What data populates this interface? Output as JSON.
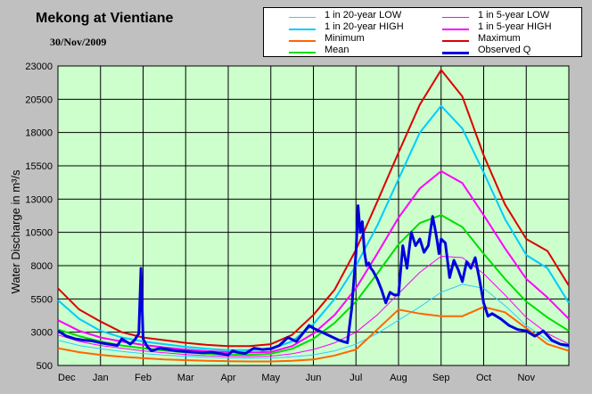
{
  "chart_data": {
    "type": "line",
    "title": "Mekong at Vientiane",
    "subtitle": "30/Nov/2009",
    "ylabel": "Water Discharge in m³/s",
    "xlabel": "",
    "ylim": [
      500,
      23000
    ],
    "yticks": [
      500,
      3000,
      5500,
      8000,
      10500,
      13000,
      15500,
      18000,
      20500,
      23000
    ],
    "xticks": [
      "Dec",
      "Jan",
      "Feb",
      "Mar",
      "Apr",
      "May",
      "Jun",
      "Jul",
      "Aug",
      "Sep",
      "Oct",
      "Nov"
    ],
    "x_domain": [
      0,
      12
    ],
    "plot_background": "#ccffcc",
    "page_background": "#c0c0c0",
    "grid": true,
    "legend_placement": "top-right",
    "series": [
      {
        "name": "1 in 20-year LOW",
        "color": "#33ccff",
        "width": 1,
        "x": [
          0,
          0.5,
          1,
          1.5,
          2,
          2.5,
          3,
          3.5,
          4,
          4.5,
          5,
          5.5,
          6,
          6.5,
          7,
          7.5,
          8,
          8.5,
          9,
          9.5,
          10,
          10.5,
          11,
          11.5,
          12
        ],
        "y": [
          2400,
          2000,
          1750,
          1550,
          1400,
          1280,
          1180,
          1100,
          1060,
          1040,
          1050,
          1150,
          1300,
          1600,
          2100,
          2900,
          3900,
          4900,
          6000,
          6600,
          6300,
          5000,
          3500,
          2400,
          1800
        ]
      },
      {
        "name": "1 in 5-year LOW",
        "color": "#ff00ff",
        "width": 1,
        "x": [
          0,
          0.5,
          1,
          1.5,
          2,
          2.5,
          3,
          3.5,
          4,
          4.5,
          5,
          5.5,
          6,
          6.5,
          7,
          7.5,
          8,
          8.5,
          9,
          9.5,
          10,
          10.5,
          11,
          11.5,
          12
        ],
        "y": [
          2800,
          2300,
          2000,
          1800,
          1600,
          1450,
          1320,
          1230,
          1180,
          1160,
          1200,
          1380,
          1700,
          2200,
          3000,
          4300,
          5900,
          7500,
          8700,
          8600,
          7400,
          5800,
          4100,
          2900,
          2100
        ]
      },
      {
        "name": "1 in 20-year HIGH",
        "color": "#00ccff",
        "width": 2,
        "x": [
          0,
          0.5,
          1,
          1.5,
          2,
          2.5,
          3,
          3.5,
          4,
          4.5,
          5,
          5.5,
          6,
          6.5,
          7,
          7.5,
          8,
          8.5,
          9,
          9.5,
          10,
          10.5,
          11,
          11.5,
          12
        ],
        "y": [
          5400,
          4000,
          3100,
          2600,
          2300,
          2100,
          1900,
          1750,
          1650,
          1650,
          1750,
          2300,
          3600,
          5500,
          8000,
          11000,
          14500,
          18000,
          20000,
          18300,
          15000,
          11500,
          8800,
          7800,
          5200
        ]
      },
      {
        "name": "1 in 5-year HIGH",
        "color": "#ff00ff",
        "width": 2,
        "x": [
          0,
          0.5,
          1,
          1.5,
          2,
          2.5,
          3,
          3.5,
          4,
          4.5,
          5,
          5.5,
          6,
          6.5,
          7,
          7.5,
          8,
          8.5,
          9,
          9.5,
          10,
          10.5,
          11,
          11.5,
          12
        ],
        "y": [
          3900,
          3100,
          2600,
          2300,
          2050,
          1850,
          1700,
          1580,
          1500,
          1470,
          1520,
          1950,
          2900,
          4300,
          6300,
          8900,
          11600,
          13800,
          15100,
          14200,
          11800,
          9300,
          7000,
          5600,
          4000
        ]
      },
      {
        "name": "Minimum",
        "color": "#ff6600",
        "width": 2,
        "x": [
          0,
          0.5,
          1,
          1.5,
          2,
          2.5,
          3,
          3.5,
          4,
          4.5,
          5,
          5.5,
          6,
          6.5,
          7,
          7.5,
          8,
          8.5,
          9,
          9.5,
          10,
          10.5,
          11,
          11.5,
          12
        ],
        "y": [
          1800,
          1500,
          1300,
          1150,
          1050,
          950,
          900,
          850,
          820,
          800,
          800,
          850,
          950,
          1250,
          1700,
          3200,
          4700,
          4400,
          4200,
          4200,
          4900,
          4500,
          3300,
          2100,
          1600
        ]
      },
      {
        "name": "Mean",
        "color": "#00dd00",
        "width": 2,
        "x": [
          0,
          0.5,
          1,
          1.5,
          2,
          2.5,
          3,
          3.5,
          4,
          4.5,
          5,
          5.5,
          6,
          6.5,
          7,
          7.5,
          8,
          8.5,
          9,
          9.5,
          10,
          10.5,
          11,
          11.5,
          12
        ],
        "y": [
          3200,
          2700,
          2300,
          2000,
          1800,
          1620,
          1480,
          1380,
          1320,
          1300,
          1380,
          1750,
          2500,
          3700,
          5300,
          7400,
          9600,
          11200,
          11800,
          10900,
          8900,
          7000,
          5300,
          4100,
          3100
        ]
      },
      {
        "name": "Maximum",
        "color": "#dd0000",
        "width": 2,
        "x": [
          0,
          0.5,
          1,
          1.5,
          2,
          2.5,
          3,
          3.5,
          4,
          4.5,
          5,
          5.5,
          6,
          6.5,
          7,
          7.5,
          8,
          8.5,
          9,
          9.5,
          10,
          10.5,
          11,
          11.5,
          12
        ],
        "y": [
          6300,
          4700,
          3800,
          3000,
          2600,
          2400,
          2200,
          2050,
          1950,
          1950,
          2100,
          2800,
          4300,
          6200,
          9200,
          12800,
          16500,
          20100,
          22700,
          20700,
          16300,
          12600,
          10000,
          9100,
          6500
        ]
      },
      {
        "name": "Observed Q",
        "color": "#0000dd",
        "width": 3,
        "x": [
          0,
          0.2,
          0.4,
          0.6,
          0.8,
          1,
          1.2,
          1.4,
          1.5,
          1.6,
          1.7,
          1.8,
          1.9,
          1.95,
          2.0,
          2.05,
          2.1,
          2.2,
          2.4,
          2.6,
          2.8,
          3,
          3.2,
          3.4,
          3.6,
          3.8,
          4,
          4.1,
          4.2,
          4.4,
          4.6,
          4.8,
          5,
          5.2,
          5.4,
          5.6,
          5.8,
          5.9,
          6.0,
          6.2,
          6.4,
          6.6,
          6.8,
          6.9,
          7.0,
          7.05,
          7.1,
          7.15,
          7.2,
          7.25,
          7.3,
          7.35,
          7.4,
          7.5,
          7.6,
          7.7,
          7.8,
          7.9,
          8.0,
          8.1,
          8.2,
          8.25,
          8.3,
          8.4,
          8.5,
          8.6,
          8.7,
          8.8,
          8.85,
          8.9,
          8.95,
          9.0,
          9.1,
          9.2,
          9.3,
          9.4,
          9.5,
          9.6,
          9.7,
          9.8,
          9.9,
          10.0,
          10.1,
          10.2,
          10.4,
          10.6,
          10.8,
          11.0,
          11.2,
          11.4,
          11.6,
          11.8,
          12.0
        ],
        "y": [
          3100,
          2700,
          2500,
          2400,
          2350,
          2200,
          2100,
          2000,
          2500,
          2300,
          2100,
          2400,
          2900,
          7800,
          2500,
          2200,
          1900,
          1600,
          1800,
          1700,
          1600,
          1550,
          1500,
          1450,
          1500,
          1400,
          1300,
          1600,
          1500,
          1400,
          1800,
          1700,
          1750,
          2000,
          2600,
          2300,
          3100,
          3500,
          3300,
          3000,
          2700,
          2400,
          2200,
          4800,
          9000,
          12500,
          10500,
          11300,
          9000,
          8000,
          8200,
          7800,
          7600,
          7000,
          6200,
          5200,
          6000,
          5800,
          5800,
          9500,
          7800,
          9200,
          10500,
          9500,
          10000,
          9000,
          9500,
          11700,
          10900,
          10000,
          8900,
          10000,
          9700,
          7100,
          8400,
          7700,
          6800,
          8300,
          7800,
          8600,
          7000,
          5200,
          4200,
          4400,
          4000,
          3500,
          3200,
          3100,
          2700,
          3100,
          2400,
          2100,
          2000
        ]
      }
    ]
  }
}
